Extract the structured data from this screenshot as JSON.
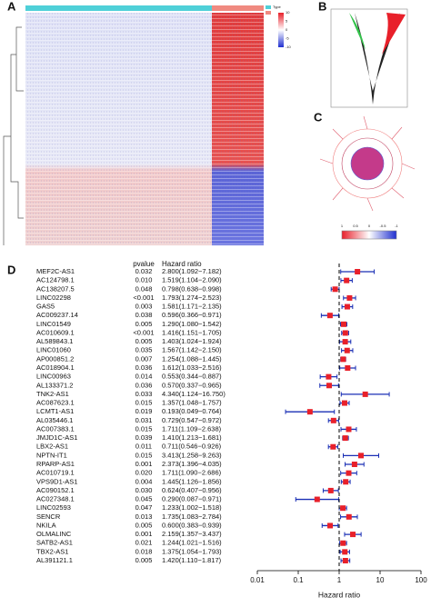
{
  "panel_labels": [
    "A",
    "B",
    "C",
    "D"
  ],
  "heatmap": {
    "legend_title": "Type",
    "scale_ticks": [
      10,
      5,
      0,
      -5,
      -10
    ]
  },
  "network": {
    "scale_ticks": [
      1,
      0.5,
      0,
      -0.5,
      -1
    ]
  },
  "chart_data": {
    "type": "forest",
    "column_headers": [
      "pvalue",
      "Hazard ratio"
    ],
    "categories": [
      "MEF2C-AS1",
      "AC124798.1",
      "AC138207.5",
      "LINC02298",
      "GAS5",
      "AC009237.14",
      "LINC01549",
      "AC010609.1",
      "AL589843.1",
      "LINC01060",
      "AP000851.2",
      "AC018904.1",
      "LINC00963",
      "AL133371.2",
      "TNK2-AS1",
      "AC087623.1",
      "LCMT1-AS1",
      "AL035446.1",
      "AC007383.1",
      "JMJD1C-AS1",
      "LBX2-AS1",
      "NPTN-IT1",
      "RPARP-AS1",
      "AC010719.1",
      "VPS9D1-AS1",
      "AC090152.1",
      "AC027348.1",
      "LINC02593",
      "SENCR",
      "NKILA",
      "OLMALINC",
      "SATB2-AS1",
      "TBX2-AS1",
      "AL391121.1"
    ],
    "pvalues": [
      "0.032",
      "0.010",
      "0.048",
      "<0.001",
      "0.003",
      "0.038",
      "0.005",
      "<0.001",
      "0.005",
      "0.035",
      "0.007",
      "0.036",
      "0.014",
      "0.036",
      "0.033",
      "0.015",
      "0.019",
      "0.031",
      "0.015",
      "0.039",
      "0.011",
      "0.015",
      "0.001",
      "0.020",
      "0.004",
      "0.030",
      "0.045",
      "0.047",
      "0.013",
      "0.005",
      "0.001",
      "0.021",
      "0.018",
      "0.005"
    ],
    "values": [
      2.8,
      1.519,
      0.798,
      1.793,
      1.581,
      0.596,
      1.29,
      1.416,
      1.403,
      1.567,
      1.254,
      1.612,
      0.553,
      0.57,
      4.34,
      1.357,
      0.193,
      0.729,
      1.711,
      1.41,
      0.711,
      3.413,
      2.373,
      1.711,
      1.445,
      0.624,
      0.29,
      1.233,
      1.735,
      0.6,
      2.159,
      1.244,
      1.375,
      1.42
    ],
    "lower": [
      1.092,
      1.104,
      0.638,
      1.274,
      1.171,
      0.366,
      1.08,
      1.151,
      1.024,
      1.142,
      1.088,
      1.033,
      0.344,
      0.337,
      1.124,
      1.048,
      0.049,
      0.547,
      1.109,
      1.213,
      0.546,
      1.258,
      1.396,
      1.09,
      1.126,
      0.407,
      0.087,
      1.002,
      1.083,
      0.383,
      1.357,
      1.021,
      1.054,
      1.11
    ],
    "upper": [
      7.182,
      2.09,
      0.998,
      2.523,
      2.135,
      0.971,
      1.542,
      1.705,
      1.924,
      2.15,
      1.445,
      2.516,
      0.887,
      0.965,
      16.75,
      1.757,
      0.764,
      0.972,
      2.638,
      1.681,
      0.926,
      9.263,
      4.035,
      2.686,
      1.856,
      0.956,
      0.971,
      1.518,
      2.784,
      0.939,
      3.437,
      1.516,
      1.793,
      1.817
    ],
    "value_labels": [
      "2.800(1.092−7.182)",
      "1.519(1.104−2.090)",
      "0.798(0.638−0.998)",
      "1.793(1.274−2.523)",
      "1.581(1.171−2.135)",
      "0.596(0.366−0.971)",
      "1.290(1.080−1.542)",
      "1.416(1.151−1.705)",
      "1.403(1.024−1.924)",
      "1.567(1.142−2.150)",
      "1.254(1.088−1.445)",
      "1.612(1.033−2.516)",
      "0.553(0.344−0.887)",
      "0.570(0.337−0.965)",
      "4.340(1.124−16.750)",
      "1.357(1.048−1.757)",
      "0.193(0.049−0.764)",
      "0.729(0.547−0.972)",
      "1.711(1.109−2.638)",
      "1.410(1.213−1.681)",
      "0.711(0.546−0.926)",
      "3.413(1.258−9.263)",
      "2.373(1.396−4.035)",
      "1.711(1.090−2.686)",
      "1.445(1.126−1.856)",
      "0.624(0.407−0.956)",
      "0.290(0.087−0.971)",
      "1.233(1.002−1.518)",
      "1.735(1.083−2.784)",
      "0.600(0.383−0.939)",
      "2.159(1.357−3.437)",
      "1.244(1.021−1.516)",
      "1.375(1.054−1.793)",
      "1.420(1.110−1.817)"
    ],
    "marker_color": "#e8202a",
    "ci_color": "#1a2fb5",
    "xlim": [
      0.01,
      100
    ],
    "xticks": [
      0.01,
      0.1,
      1,
      10,
      100
    ],
    "log_x": true,
    "reference": 1,
    "xlabel": "Hazard ratio"
  }
}
